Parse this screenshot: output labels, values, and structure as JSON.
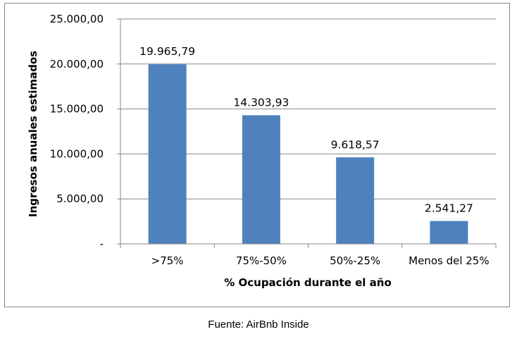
{
  "chart_data": {
    "type": "bar",
    "categories": [
      ">75%",
      "75%-50%",
      "50%-25%",
      "Menos del 25%"
    ],
    "values": [
      19965.79,
      14303.93,
      9618.57,
      2541.27
    ],
    "value_labels": [
      "19.965,79",
      "14.303,93",
      "9.618,57",
      "2.541,27"
    ],
    "xlabel": "% Ocupación durante el año",
    "ylabel": "Ingresos anuales estimados",
    "ylim": [
      0,
      25000
    ],
    "y_ticks": [
      0,
      5000,
      10000,
      15000,
      20000,
      25000
    ],
    "y_tick_labels": [
      "-",
      "5.000,00",
      "10.000,00",
      "15.000,00",
      "20.000,00",
      "25.000,00"
    ],
    "grid": true,
    "legend": "none",
    "bar_color": "#4f81bd",
    "grid_color": "#878787"
  },
  "source": "Fuente: AirBnb Inside"
}
